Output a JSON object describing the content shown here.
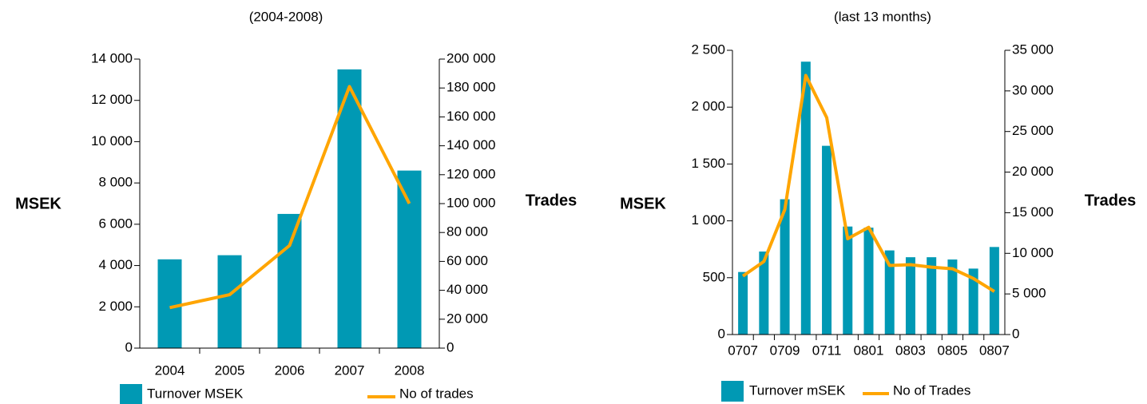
{
  "chart_data": [
    {
      "type": "bar_line",
      "title": "(2004-2008)",
      "ylabel": "MSEK",
      "y2label": "Trades",
      "categories": [
        "2004",
        "2005",
        "2006",
        "2007",
        "2008"
      ],
      "series": [
        {
          "name": "Turnover MSEK",
          "color": "#0099b4",
          "values": [
            4300,
            4500,
            6500,
            13500,
            8600
          ]
        },
        {
          "name": "No of trades",
          "color": "#ffa500",
          "axis": "y2",
          "values": [
            28000,
            37000,
            71000,
            181000,
            100000
          ]
        }
      ],
      "ylim": [
        0,
        14000
      ],
      "yticks": [
        0,
        {
          "value": 2000,
          "label": "2 000"
        },
        {
          "value": 4000,
          "label": "4 000"
        },
        {
          "value": 6000,
          "label": "6 000"
        },
        {
          "value": 8000,
          "label": "8 000"
        },
        {
          "value": 10000,
          "label": "10 000"
        },
        {
          "value": 12000,
          "label": "12 000"
        },
        {
          "value": 14000,
          "label": "14 000"
        }
      ],
      "y2lim": [
        0,
        200000
      ],
      "y2ticks": [
        0,
        {
          "value": 20000,
          "label": "20 000"
        },
        {
          "value": 40000,
          "label": "40 000"
        },
        {
          "value": 60000,
          "label": "60 000"
        },
        {
          "value": 80000,
          "label": "80 000"
        },
        {
          "value": 100000,
          "label": "100 000"
        },
        {
          "value": 120000,
          "label": "120 000"
        },
        {
          "value": 140000,
          "label": "140 000"
        },
        {
          "value": 160000,
          "label": "160 000"
        },
        {
          "value": 180000,
          "label": "180 000"
        },
        {
          "value": 200000,
          "label": "200 000"
        }
      ]
    },
    {
      "type": "bar_line",
      "title": "(last 13 months)",
      "ylabel": "MSEK",
      "y2label": "Trades",
      "categories": [
        "0707",
        null,
        "0709",
        null,
        "0711",
        null,
        "0801",
        null,
        "0803",
        null,
        "0805",
        null,
        "0807"
      ],
      "series": [
        {
          "name": "Turnover mSEK",
          "color": "#0099b4",
          "values": [
            550,
            730,
            1190,
            2400,
            1660,
            950,
            940,
            740,
            680,
            680,
            660,
            580,
            770
          ]
        },
        {
          "name": "No of Trades",
          "color": "#ffa500",
          "axis": "y2",
          "values": [
            7200,
            9000,
            15400,
            31900,
            26700,
            11800,
            13200,
            8500,
            8600,
            8300,
            8100,
            6900,
            5300
          ]
        }
      ],
      "ylim": [
        0,
        2500
      ],
      "yticks": [
        0,
        500,
        {
          "value": 1000,
          "label": "1 000"
        },
        {
          "value": 1500,
          "label": "1 500"
        },
        {
          "value": 2000,
          "label": "2 000"
        },
        {
          "value": 2500,
          "label": "2 500"
        }
      ],
      "y2lim": [
        0,
        35000
      ],
      "y2ticks": [
        0,
        {
          "value": 5000,
          "label": "5 000"
        },
        {
          "value": 10000,
          "label": "10 000"
        },
        {
          "value": 15000,
          "label": "15 000"
        },
        {
          "value": 20000,
          "label": "20 000"
        },
        {
          "value": 25000,
          "label": "25 000"
        },
        {
          "value": 30000,
          "label": "30 000"
        },
        {
          "value": 35000,
          "label": "35 000"
        }
      ]
    }
  ]
}
